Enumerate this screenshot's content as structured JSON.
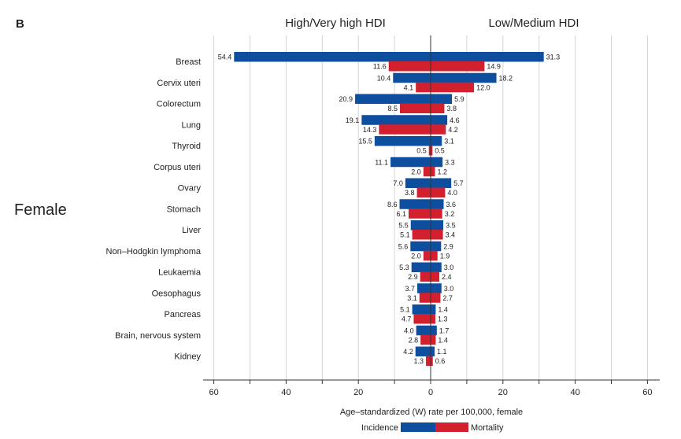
{
  "panel_label": "B",
  "side_label": "Female",
  "chart_data": {
    "type": "bar",
    "layout": "diverging-horizontal",
    "panel_titles": {
      "left": "High/Very high HDI",
      "right": "Low/Medium HDI"
    },
    "xlabel": "Age–standardized (W) rate per 100,000, female",
    "xlim": [
      -60,
      60
    ],
    "xticks": [
      -60,
      -40,
      -20,
      0,
      20,
      40,
      60
    ],
    "xtick_labels": [
      "60",
      "40",
      "20",
      "0",
      "20",
      "40",
      "60"
    ],
    "grid": true,
    "legend": {
      "position": "bottom"
    },
    "categories": [
      "Breast",
      "Cervix uteri",
      "Colorectum",
      "Lung",
      "Thyroid",
      "Corpus uteri",
      "Ovary",
      "Stomach",
      "Liver",
      "Non–Hodgkin lymphoma",
      "Leukaemia",
      "Oesophagus",
      "Pancreas",
      "Brain, nervous system",
      "Kidney"
    ],
    "series": [
      {
        "name": "Incidence",
        "color": "#0d4f9e",
        "high_hdi": [
          54.4,
          10.4,
          20.9,
          19.1,
          15.5,
          11.1,
          7.0,
          8.6,
          5.5,
          5.6,
          5.3,
          3.7,
          5.1,
          4.0,
          4.2
        ],
        "low_hdi": [
          31.3,
          18.2,
          5.9,
          4.6,
          3.1,
          3.3,
          5.7,
          3.6,
          3.5,
          2.9,
          3.0,
          3.0,
          1.4,
          1.7,
          1.1
        ]
      },
      {
        "name": "Mortality",
        "color": "#d2202e",
        "high_hdi": [
          11.6,
          4.1,
          8.5,
          14.3,
          0.5,
          2.0,
          3.8,
          6.1,
          5.1,
          2.0,
          2.9,
          3.1,
          4.7,
          2.8,
          1.3
        ],
        "low_hdi": [
          14.9,
          12.0,
          3.8,
          4.2,
          0.5,
          1.2,
          4.0,
          3.2,
          3.4,
          1.9,
          2.4,
          2.7,
          1.3,
          1.4,
          0.6
        ]
      }
    ]
  }
}
